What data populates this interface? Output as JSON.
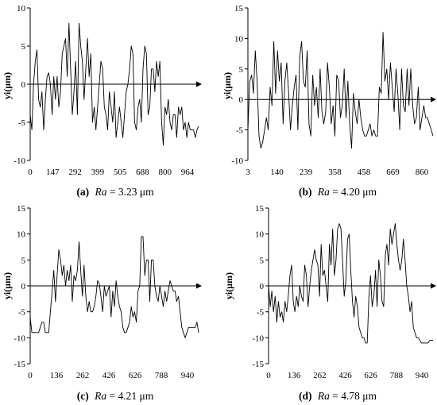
{
  "chart_data": [
    {
      "id": "a",
      "type": "line",
      "caption": {
        "letter": "(a)",
        "var": "Ra",
        "rest": " = 3.23 μm"
      },
      "ylabel": "yi(μm)",
      "xlabel": "",
      "ylim": [
        -10,
        10
      ],
      "yticks": [
        10,
        5,
        0,
        -5,
        -10
      ],
      "xticks": [
        "0",
        "147",
        "292",
        "399",
        "505",
        "688",
        "800",
        "964"
      ],
      "x": [
        0,
        10,
        20,
        30,
        40,
        50,
        60,
        70,
        80,
        90,
        100,
        110,
        120,
        130,
        140,
        150,
        160,
        170,
        180,
        190,
        200,
        210,
        220,
        230,
        240,
        250,
        260,
        270,
        280,
        290,
        300,
        310,
        320,
        330,
        340,
        350,
        360,
        370,
        380,
        390,
        400,
        410,
        420,
        430,
        440,
        450,
        460,
        470,
        480,
        490,
        500,
        510,
        520,
        530,
        540,
        550,
        560,
        570,
        580,
        590,
        600,
        610,
        620,
        630,
        640,
        650,
        660,
        670,
        680,
        690,
        700,
        710,
        720,
        730,
        740,
        750,
        760,
        770,
        780,
        790,
        800,
        810,
        820,
        830,
        840,
        850,
        860,
        870,
        880,
        890,
        900,
        910,
        920,
        930,
        940,
        950,
        960,
        970,
        980,
        990,
        1000
      ],
      "values": [
        -4,
        -6,
        0,
        3,
        4.5,
        -2,
        -3,
        -1,
        -6,
        -2,
        1,
        1.5,
        0,
        -4,
        1,
        -2,
        1,
        -3,
        -1,
        4,
        5,
        6,
        1,
        8,
        2,
        -4,
        -1,
        3,
        -4,
        8,
        5,
        3,
        -2,
        2,
        6,
        1,
        4,
        -5,
        -3,
        -6,
        -3,
        0,
        3,
        2,
        -3,
        -4,
        -6,
        -1,
        -3,
        -5,
        -1,
        -7,
        -5,
        -3,
        -5,
        -7,
        -4,
        -1,
        0,
        2,
        5,
        4,
        -5,
        -6,
        -3,
        -2,
        -5,
        2,
        5,
        4,
        -4,
        -3,
        2,
        2,
        -1,
        3,
        1,
        3,
        -5,
        -8,
        -3,
        -4,
        -2,
        -5,
        -6,
        -4,
        -4,
        -7,
        -3,
        -4,
        -3,
        -6,
        -5,
        -7,
        -5,
        -6,
        -6,
        -6,
        -7,
        -6,
        -5.5
      ]
    },
    {
      "id": "b",
      "type": "line",
      "caption": {
        "letter": "(b)",
        "var": "Ra",
        "rest": " = 4.20 μm"
      },
      "ylabel": "yi(μm)",
      "xlabel": "",
      "ylim": [
        -10,
        15
      ],
      "yticks": [
        15,
        10,
        5,
        0,
        -5,
        -10
      ],
      "xticks": [
        "3",
        "140",
        "239",
        "358",
        "458",
        "669",
        "860"
      ],
      "x": [
        0,
        10,
        20,
        30,
        40,
        50,
        60,
        70,
        80,
        90,
        100,
        110,
        120,
        130,
        140,
        150,
        160,
        170,
        180,
        190,
        200,
        210,
        220,
        230,
        240,
        250,
        260,
        270,
        280,
        290,
        300,
        310,
        320,
        330,
        340,
        350,
        360,
        370,
        380,
        390,
        400,
        410,
        420,
        430,
        440,
        450,
        460,
        470,
        480,
        490,
        500,
        510,
        520,
        530,
        540,
        550,
        560,
        570,
        580,
        590,
        600,
        610,
        620,
        630,
        640,
        650,
        660,
        670,
        680,
        690,
        700,
        710,
        720,
        730,
        740,
        750,
        760,
        770,
        780,
        790,
        800,
        810,
        820,
        830,
        840,
        850,
        860,
        870,
        880,
        890,
        900,
        910,
        920,
        930,
        940,
        950,
        960,
        970,
        980,
        990,
        1000
      ],
      "values": [
        -5,
        3,
        4,
        1,
        8,
        3,
        -6,
        -8,
        -7,
        -5,
        -3,
        -5,
        2,
        -1,
        9.5,
        1,
        8,
        3,
        6,
        -4,
        3,
        6,
        1,
        -5,
        -1,
        2,
        4,
        -5,
        7,
        9.5,
        3,
        2,
        8,
        -4,
        -6,
        4,
        -1,
        2,
        -3,
        5,
        -2,
        -4,
        -2,
        6,
        2,
        -4,
        -1,
        -6,
        4,
        3,
        -3,
        -1,
        5,
        -3,
        3,
        -4,
        -8,
        1,
        -2,
        -4,
        0,
        -3,
        -5,
        -6,
        -6,
        -5,
        -4,
        -6,
        -5,
        -6,
        -6,
        2,
        1,
        11,
        3,
        5,
        0,
        6,
        2,
        -2,
        5,
        1,
        -5,
        5,
        -1,
        -2,
        5,
        -1,
        5,
        -1,
        -4,
        -3,
        2,
        -5,
        -3,
        -1,
        -3,
        -3,
        -4,
        -5,
        -6
      ]
    },
    {
      "id": "c",
      "type": "line",
      "caption": {
        "letter": "(c)",
        "var": "Ra",
        "rest": " = 4.21 μm"
      },
      "ylabel": "yi(μm)",
      "xlabel": "",
      "ylim": [
        -15,
        15
      ],
      "yticks": [
        15,
        10,
        5,
        0,
        -5,
        -10,
        -15
      ],
      "xticks": [
        "0",
        "136",
        "262",
        "426",
        "626",
        "788",
        "940"
      ],
      "x": [
        0,
        10,
        20,
        30,
        40,
        50,
        60,
        70,
        80,
        90,
        100,
        110,
        120,
        130,
        140,
        150,
        160,
        170,
        180,
        190,
        200,
        210,
        220,
        230,
        240,
        250,
        260,
        270,
        280,
        290,
        300,
        310,
        320,
        330,
        340,
        350,
        360,
        370,
        380,
        390,
        400,
        410,
        420,
        430,
        440,
        450,
        460,
        470,
        480,
        490,
        500,
        510,
        520,
        530,
        540,
        550,
        560,
        570,
        580,
        590,
        600,
        610,
        620,
        630,
        640,
        650,
        660,
        670,
        680,
        690,
        700,
        710,
        720,
        730,
        740,
        750,
        760,
        770,
        780,
        790,
        800,
        810,
        820,
        830,
        840,
        850,
        860,
        870,
        880,
        890,
        900,
        910,
        920,
        930,
        940,
        950,
        960,
        970,
        980,
        990,
        1000
      ],
      "values": [
        -6,
        -9,
        -9,
        -9,
        -9,
        -9,
        -8,
        -7,
        -7,
        -9,
        -9,
        -9,
        -5,
        -1,
        3,
        -3,
        2,
        7,
        5,
        2,
        4,
        0,
        3,
        1,
        4,
        -3,
        2,
        1,
        3,
        8.5,
        3,
        -2,
        4,
        -2,
        -5,
        -3,
        -5,
        -5,
        -4,
        -2,
        1,
        0.5,
        -2,
        -5,
        0,
        -2,
        -1,
        0,
        -6,
        -1,
        -4,
        1,
        -2,
        -4,
        -5,
        -8,
        -9,
        -9,
        -8,
        -7,
        -4,
        -6,
        -5,
        -7,
        -1,
        0,
        9.5,
        9.5,
        2,
        5,
        5,
        -3,
        5,
        5,
        0,
        -2,
        -3,
        0,
        -2,
        -4,
        -1,
        -3,
        -1,
        1,
        0,
        -1,
        -1,
        -3,
        -2,
        -5,
        -8,
        -9,
        -10,
        -9,
        -8,
        -8,
        -8,
        -8,
        -8,
        -7,
        -9
      ]
    },
    {
      "id": "d",
      "type": "line",
      "caption": {
        "letter": "(d)",
        "var": "Ra",
        "rest": " = 4.78 μm"
      },
      "ylabel": "yi(μm)",
      "xlabel": "",
      "ylim": [
        -15,
        15
      ],
      "yticks": [
        15,
        10,
        5,
        0,
        -5,
        -10,
        -15
      ],
      "xticks": [
        "0",
        "136",
        "262",
        "426",
        "626",
        "788",
        "940"
      ],
      "x": [
        0,
        10,
        20,
        30,
        40,
        50,
        60,
        70,
        80,
        90,
        100,
        110,
        120,
        130,
        140,
        150,
        160,
        170,
        180,
        190,
        200,
        210,
        220,
        230,
        240,
        250,
        260,
        270,
        280,
        290,
        300,
        310,
        320,
        330,
        340,
        350,
        360,
        370,
        380,
        390,
        400,
        410,
        420,
        430,
        440,
        450,
        460,
        470,
        480,
        490,
        500,
        510,
        520,
        530,
        540,
        550,
        560,
        570,
        580,
        590,
        600,
        610,
        620,
        630,
        640,
        650,
        660,
        670,
        680,
        690,
        700,
        710,
        720,
        730,
        740,
        750,
        760,
        770,
        780,
        790,
        800,
        810,
        820,
        830,
        840,
        850,
        860,
        870,
        880,
        890,
        900,
        910,
        920,
        930,
        940,
        950,
        960,
        970,
        980,
        990,
        1000
      ],
      "values": [
        0,
        -4,
        -1,
        -5,
        -2,
        -7,
        -3,
        -6,
        -5,
        -7,
        -3,
        -5,
        -2,
        2,
        4,
        -3,
        -5,
        -2,
        -4,
        0,
        -2,
        -3,
        4,
        2,
        -4,
        0,
        3,
        5,
        7,
        5,
        4,
        -2,
        8,
        2,
        3,
        0,
        -3,
        8,
        4,
        11,
        2,
        5,
        11,
        12,
        11,
        5,
        -2,
        1,
        9,
        10,
        3,
        -3,
        -6,
        -2,
        -4,
        -8,
        -9,
        -10,
        -10,
        -11,
        -11,
        -2,
        2,
        -4,
        -2,
        3,
        -4,
        5,
        2,
        -3,
        -4,
        6,
        8,
        4,
        11,
        8,
        10,
        12,
        8,
        5,
        3,
        5,
        9,
        5,
        0,
        -2,
        -5,
        -3,
        -8,
        -9,
        -10,
        -10,
        -10.5,
        -11,
        -11,
        -11,
        -11,
        -11,
        -10.5,
        -10.5,
        -10.5
      ]
    }
  ]
}
